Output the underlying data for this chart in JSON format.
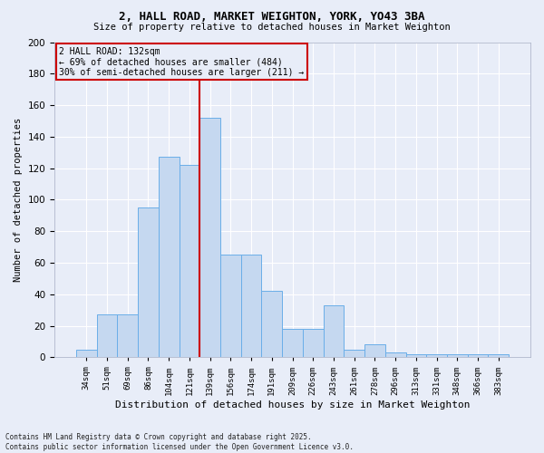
{
  "title_line1": "2, HALL ROAD, MARKET WEIGHTON, YORK, YO43 3BA",
  "title_line2": "Size of property relative to detached houses in Market Weighton",
  "xlabel": "Distribution of detached houses by size in Market Weighton",
  "ylabel": "Number of detached properties",
  "categories": [
    "34sqm",
    "51sqm",
    "69sqm",
    "86sqm",
    "104sqm",
    "121sqm",
    "139sqm",
    "156sqm",
    "174sqm",
    "191sqm",
    "209sqm",
    "226sqm",
    "243sqm",
    "261sqm",
    "278sqm",
    "296sqm",
    "313sqm",
    "331sqm",
    "348sqm",
    "366sqm",
    "383sqm"
  ],
  "bar_values": [
    5,
    27,
    27,
    95,
    127,
    122,
    152,
    65,
    65,
    42,
    18,
    18,
    33,
    5,
    8,
    3,
    2,
    2,
    2,
    2,
    2
  ],
  "bar_color": "#c5d8f0",
  "bar_edge_color": "#6aaee8",
  "vline_x_index": 5.5,
  "vline_color": "#cc0000",
  "annotation_line1": "2 HALL ROAD: 132sqm",
  "annotation_line2": "← 69% of detached houses are smaller (484)",
  "annotation_line3": "30% of semi-detached houses are larger (211) →",
  "annotation_box_color": "#cc0000",
  "background_color": "#e8edf8",
  "grid_color": "#ffffff",
  "ylim": [
    0,
    200
  ],
  "yticks": [
    0,
    20,
    40,
    60,
    80,
    100,
    120,
    140,
    160,
    180,
    200
  ],
  "footer_line1": "Contains HM Land Registry data © Crown copyright and database right 2025.",
  "footer_line2": "Contains public sector information licensed under the Open Government Licence v3.0."
}
